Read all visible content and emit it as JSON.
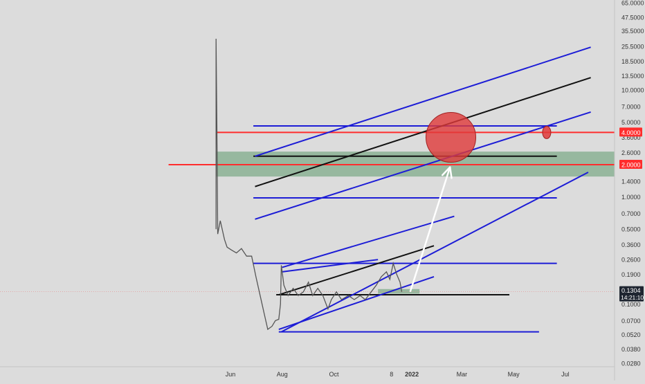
{
  "colors": {
    "background": "#dcdcdc",
    "axis_text": "#333333",
    "price_line": "#555555",
    "blue_line": "#1c1cd6",
    "black_line": "#111111",
    "red_line": "#ff2d2d",
    "green_zone": "#5e9b6e",
    "red_circle": "#e03a3a",
    "arrow": "#ffffff",
    "current_tag": "#1e2530"
  },
  "chart_data": {
    "type": "line",
    "y_scale": "log",
    "ylim": [
      0.025,
      70
    ],
    "x_axis": {
      "ticks": [
        {
          "label": "Jun",
          "date": "2021-06-01"
        },
        {
          "label": "Aug",
          "date": "2021-08-01"
        },
        {
          "label": "Oct",
          "date": "2021-10-01"
        },
        {
          "label": "8",
          "date": "2021-12-08"
        },
        {
          "label": "2022",
          "date": "2022-01-01"
        },
        {
          "label": "Mar",
          "date": "2022-03-01"
        },
        {
          "label": "May",
          "date": "2022-05-01"
        },
        {
          "label": "Jul",
          "date": "2022-07-01"
        }
      ]
    },
    "y_axis": {
      "ticks": [
        "65.0000",
        "47.5000",
        "35.5000",
        "25.5000",
        "18.5000",
        "13.5000",
        "10.0000",
        "7.0000",
        "5.0000",
        "3.6000",
        "2.6000",
        "1.4000",
        "1.0000",
        "0.7000",
        "0.5000",
        "0.3600",
        "0.2600",
        "0.1900",
        "0.1400",
        "0.1000",
        "0.0700",
        "0.0520",
        "0.0380",
        "0.0280"
      ],
      "tick_values": [
        65,
        47.5,
        35.5,
        25.5,
        18.5,
        13.5,
        10,
        7,
        5,
        3.6,
        2.6,
        1.4,
        1.0,
        0.7,
        0.5,
        0.36,
        0.26,
        0.19,
        0.14,
        0.1,
        0.07,
        0.052,
        0.038,
        0.028
      ]
    },
    "highlighted_levels": [
      {
        "label": "4.0000",
        "value": 4.0
      },
      {
        "label": "2.0000",
        "value": 2.0
      }
    ],
    "current_price": {
      "label": "0.1304",
      "value": 0.1304,
      "countdown": "14:21:10"
    },
    "price_series": [
      [
        "2021-05-15",
        0.5
      ],
      [
        "2021-05-15",
        30.0
      ],
      [
        "2021-05-16",
        4.5
      ],
      [
        "2021-05-17",
        0.45
      ],
      [
        "2021-05-20",
        0.6
      ],
      [
        "2021-05-25",
        0.4
      ],
      [
        "2021-05-28",
        0.34
      ],
      [
        "2021-06-02",
        0.32
      ],
      [
        "2021-06-08",
        0.3
      ],
      [
        "2021-06-14",
        0.33
      ],
      [
        "2021-06-20",
        0.28
      ],
      [
        "2021-06-26",
        0.28
      ],
      [
        "2021-07-01",
        0.18
      ],
      [
        "2021-07-06",
        0.12
      ],
      [
        "2021-07-11",
        0.08
      ],
      [
        "2021-07-15",
        0.058
      ],
      [
        "2021-07-20",
        0.062
      ],
      [
        "2021-07-24",
        0.07
      ],
      [
        "2021-07-28",
        0.072
      ],
      [
        "2021-07-30",
        0.1
      ],
      [
        "2021-07-31",
        0.23
      ],
      [
        "2021-08-03",
        0.15
      ],
      [
        "2021-08-08",
        0.12
      ],
      [
        "2021-08-14",
        0.14
      ],
      [
        "2021-08-20",
        0.12
      ],
      [
        "2021-08-26",
        0.13
      ],
      [
        "2021-09-01",
        0.16
      ],
      [
        "2021-09-06",
        0.12
      ],
      [
        "2021-09-12",
        0.14
      ],
      [
        "2021-09-18",
        0.12
      ],
      [
        "2021-09-24",
        0.09
      ],
      [
        "2021-09-28",
        0.11
      ],
      [
        "2021-10-04",
        0.13
      ],
      [
        "2021-10-10",
        0.11
      ],
      [
        "2021-10-18",
        0.12
      ],
      [
        "2021-10-25",
        0.11
      ],
      [
        "2021-11-01",
        0.12
      ],
      [
        "2021-11-07",
        0.11
      ],
      [
        "2021-11-14",
        0.13
      ],
      [
        "2021-11-20",
        0.15
      ],
      [
        "2021-11-26",
        0.18
      ],
      [
        "2021-12-02",
        0.2
      ],
      [
        "2021-12-06",
        0.17
      ],
      [
        "2021-12-10",
        0.24
      ],
      [
        "2021-12-14",
        0.19
      ],
      [
        "2021-12-18",
        0.16
      ],
      [
        "2021-12-20",
        0.13
      ]
    ],
    "drawings": [
      {
        "color": "blue",
        "start": [
          "2021-06-28",
          4.6
        ],
        "end": [
          "2022-06-21",
          4.6
        ]
      },
      {
        "color": "black",
        "start": [
          "2021-06-28",
          2.4
        ],
        "end": [
          "2022-06-21",
          2.4
        ]
      },
      {
        "color": "blue",
        "start": [
          "2021-06-28",
          0.98
        ],
        "end": [
          "2022-06-21",
          0.98
        ]
      },
      {
        "color": "blue",
        "start": [
          "2021-06-28",
          0.24
        ],
        "end": [
          "2022-06-21",
          0.24
        ]
      },
      {
        "color": "blue",
        "start": [
          "2021-07-28",
          0.055
        ],
        "end": [
          "2022-05-31",
          0.055
        ]
      },
      {
        "color": "black",
        "start": [
          "2021-07-25",
          0.122
        ],
        "end": [
          "2022-04-26",
          0.122
        ]
      },
      {
        "color": "blue",
        "start": [
          "2021-06-30",
          2.4
        ],
        "end": [
          "2022-07-31",
          25.0
        ]
      },
      {
        "color": "black",
        "start": [
          "2021-06-30",
          1.25
        ],
        "end": [
          "2022-07-31",
          13.0
        ]
      },
      {
        "color": "blue",
        "start": [
          "2021-06-30",
          0.62
        ],
        "end": [
          "2022-07-31",
          6.2
        ]
      },
      {
        "color": "blue",
        "start": [
          "2021-07-31",
          0.055
        ],
        "end": [
          "2022-07-28",
          1.7
        ]
      },
      {
        "color": "blue",
        "start": [
          "2021-08-01",
          0.22
        ],
        "end": [
          "2022-02-20",
          0.66
        ]
      },
      {
        "color": "blue",
        "start": [
          "2021-08-01",
          0.2
        ],
        "end": [
          "2021-11-22",
          0.26
        ]
      },
      {
        "color": "black",
        "start": [
          "2021-07-28",
          0.122
        ],
        "end": [
          "2022-01-27",
          0.35
        ]
      },
      {
        "color": "blue",
        "start": [
          "2021-07-28",
          0.058
        ],
        "end": [
          "2022-01-27",
          0.18
        ]
      }
    ],
    "horizontal_rays": [
      {
        "color": "red",
        "value": 4.0,
        "from": "2021-05-15"
      },
      {
        "color": "red",
        "value": 2.0,
        "from": "2021-03-20"
      }
    ],
    "zones": [
      {
        "color": "green",
        "y_low": 1.55,
        "y_high": 2.65,
        "x_from": "2021-05-15"
      },
      {
        "color": "green",
        "y_low": 0.125,
        "y_high": 0.138,
        "x_from": "2021-11-22",
        "x_to": "2022-01-10"
      }
    ],
    "markers": [
      {
        "shape": "circle",
        "color": "red",
        "center": [
          "2022-02-16",
          3.6
        ],
        "size": "large"
      },
      {
        "shape": "circle",
        "color": "red",
        "center": [
          "2022-06-09",
          4.0
        ],
        "size": "small"
      }
    ],
    "arrow": {
      "color": "white",
      "from": [
        "2021-12-30",
        0.13
      ],
      "to": [
        "2022-02-15",
        1.9
      ]
    }
  }
}
